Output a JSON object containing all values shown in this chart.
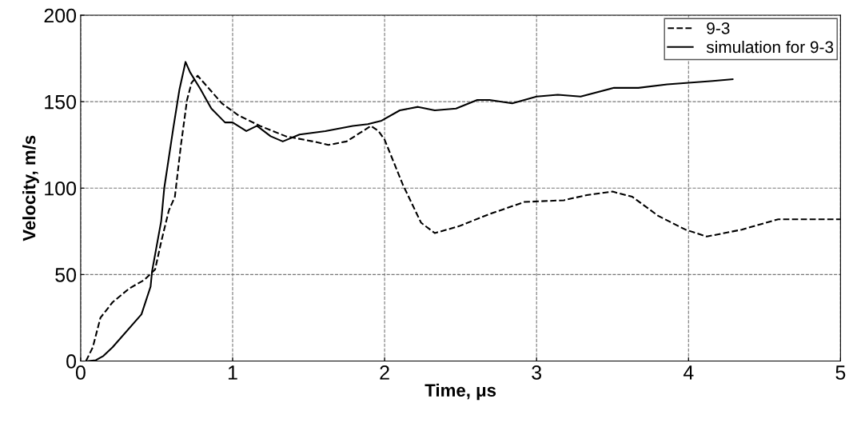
{
  "chart_data": {
    "type": "line",
    "xlabel": "Time, μs",
    "ylabel": "Velocity, m/s",
    "xlim": [
      0,
      5
    ],
    "ylim": [
      0,
      200
    ],
    "xticks": [
      0,
      1,
      2,
      3,
      4,
      5
    ],
    "yticks": [
      0,
      50,
      100,
      150,
      200
    ],
    "grid": true,
    "legend": "top right",
    "series": [
      {
        "name": "9-3",
        "color": "#000000",
        "line_style": "dashed",
        "x": [
          0.035,
          0.08,
          0.13,
          0.21,
          0.32,
          0.42,
          0.49,
          0.53,
          0.58,
          0.62,
          0.66,
          0.7,
          0.73,
          0.77,
          0.84,
          0.93,
          1.04,
          1.18,
          1.35,
          1.53,
          1.63,
          1.75,
          1.91,
          1.96,
          2.0,
          2.12,
          2.24,
          2.33,
          2.49,
          2.69,
          2.92,
          3.18,
          3.33,
          3.5,
          3.63,
          3.8,
          3.98,
          4.12,
          4.35,
          4.59,
          4.78,
          5.0
        ],
        "values": [
          0,
          8,
          25,
          34,
          42,
          47,
          53,
          69,
          87,
          95,
          125,
          151,
          161,
          165,
          158,
          149,
          142,
          136,
          130,
          127,
          125,
          127,
          136,
          133,
          128,
          102,
          80,
          74,
          78,
          85,
          92,
          93,
          96,
          98,
          95,
          84,
          76,
          72,
          76,
          82,
          82,
          82
        ]
      },
      {
        "name": "simulation for 9-3",
        "color": "#000000",
        "line_style": "solid",
        "x": [
          0.05,
          0.1,
          0.15,
          0.21,
          0.4,
          0.46,
          0.47,
          0.53,
          0.55,
          0.61,
          0.65,
          0.69,
          0.72,
          0.79,
          0.86,
          0.95,
          1.0,
          1.09,
          1.16,
          1.25,
          1.33,
          1.44,
          1.61,
          1.79,
          1.89,
          1.98,
          2.1,
          2.22,
          2.33,
          2.47,
          2.61,
          2.69,
          2.84,
          3.0,
          3.14,
          3.29,
          3.51,
          3.67,
          3.86,
          4.16,
          4.29
        ],
        "values": [
          0,
          0.5,
          3,
          8,
          27,
          43,
          52,
          81,
          100,
          135,
          157,
          173,
          167,
          157,
          146,
          138,
          138,
          133,
          136,
          130,
          127,
          131,
          133,
          136,
          137,
          139,
          145,
          147,
          145,
          146,
          151,
          151,
          149,
          153,
          154,
          153,
          158,
          158,
          160,
          162,
          163
        ]
      }
    ]
  }
}
